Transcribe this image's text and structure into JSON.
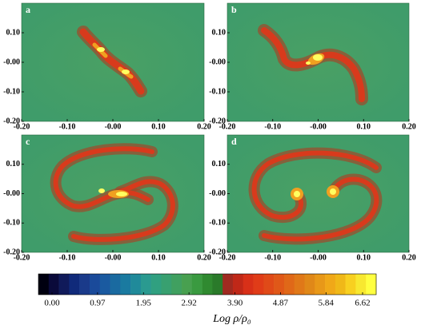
{
  "chart_data": [
    {
      "type": "density-map",
      "panel_label": "a",
      "xlim": [
        -0.2,
        0.2
      ],
      "ylim": [
        -0.2,
        0.2
      ],
      "xticks": [
        {
          "value": -0.2,
          "label": "-0.20"
        },
        {
          "value": -0.1,
          "label": "-0.10"
        },
        {
          "value": 0,
          "label": "-0.00"
        },
        {
          "value": 0.1,
          "label": "0.10"
        },
        {
          "value": 0.2,
          "label": "0.20"
        }
      ],
      "yticks": [
        {
          "value": 0.1,
          "label": "0.10"
        },
        {
          "value": 0,
          "label": "-0.00"
        },
        {
          "value": -0.1,
          "label": "-0.10"
        },
        {
          "value": -0.2,
          "label": "-0.20"
        }
      ]
    },
    {
      "type": "density-map",
      "panel_label": "b",
      "xlim": [
        -0.2,
        0.2
      ],
      "ylim": [
        -0.2,
        0.2
      ],
      "xticks": [
        {
          "value": -0.2,
          "label": "-0.20"
        },
        {
          "value": -0.1,
          "label": "-0.10"
        },
        {
          "value": 0,
          "label": "-0.00"
        },
        {
          "value": 0.1,
          "label": "0.10"
        },
        {
          "value": 0.2,
          "label": "0.20"
        }
      ],
      "yticks": [
        {
          "value": 0.1,
          "label": "0.10"
        },
        {
          "value": 0,
          "label": "-0.00"
        },
        {
          "value": -0.1,
          "label": "-0.10"
        },
        {
          "value": -0.2,
          "label": "-0.20"
        }
      ]
    },
    {
      "type": "density-map",
      "panel_label": "c",
      "xlim": [
        -0.2,
        0.2
      ],
      "ylim": [
        -0.2,
        0.2
      ],
      "xticks": [
        {
          "value": -0.2,
          "label": "-0.20"
        },
        {
          "value": -0.1,
          "label": "-0.10"
        },
        {
          "value": 0,
          "label": "-0.00"
        },
        {
          "value": 0.1,
          "label": "0.10"
        },
        {
          "value": 0.2,
          "label": "0.20"
        }
      ],
      "yticks": [
        {
          "value": 0.1,
          "label": "0.10"
        },
        {
          "value": 0,
          "label": "-0.00"
        },
        {
          "value": -0.1,
          "label": "-0.10"
        },
        {
          "value": -0.2,
          "label": "-0.20"
        }
      ]
    },
    {
      "type": "density-map",
      "panel_label": "d",
      "xlim": [
        -0.2,
        0.2
      ],
      "ylim": [
        -0.2,
        0.2
      ],
      "xticks": [
        {
          "value": -0.2,
          "label": "-0.20"
        },
        {
          "value": -0.1,
          "label": "-0.10"
        },
        {
          "value": 0,
          "label": "-0.00"
        },
        {
          "value": 0.1,
          "label": "0.10"
        },
        {
          "value": 0.2,
          "label": "0.20"
        }
      ],
      "yticks": [
        {
          "value": 0.1,
          "label": "0.10"
        },
        {
          "value": 0,
          "label": "-0.00"
        },
        {
          "value": -0.1,
          "label": "-0.10"
        },
        {
          "value": -0.2,
          "label": "-0.20"
        }
      ]
    },
    {
      "type": "colorbar",
      "label": "Log ρ/ρ₀",
      "xlim": [
        -0.29,
        6.91
      ],
      "xticks": [
        {
          "value": 0,
          "label": "0.00"
        },
        0.97,
        1.95,
        2.92,
        {
          "value": 3.9,
          "label": "3.90"
        },
        4.87,
        5.84,
        6.62
      ],
      "colors": [
        "#000010",
        "#0a0a3a",
        "#101a5a",
        "#102a7a",
        "#1a3a8a",
        "#1a4a9a",
        "#1a5aa0",
        "#1a6aa0",
        "#1a7aa0",
        "#208a9a",
        "#2a9a90",
        "#30a080",
        "#38a070",
        "#40a060",
        "#48a050",
        "#3a9a40",
        "#308a30",
        "#2a7a2a",
        "#a02a20",
        "#c02818",
        "#d83018",
        "#e03c18",
        "#e04a18",
        "#e05818",
        "#e06818",
        "#e07818",
        "#e08818",
        "#e89818",
        "#f0a818",
        "#f0b818",
        "#f8d020",
        "#f8e830",
        "#ffff40"
      ]
    }
  ]
}
